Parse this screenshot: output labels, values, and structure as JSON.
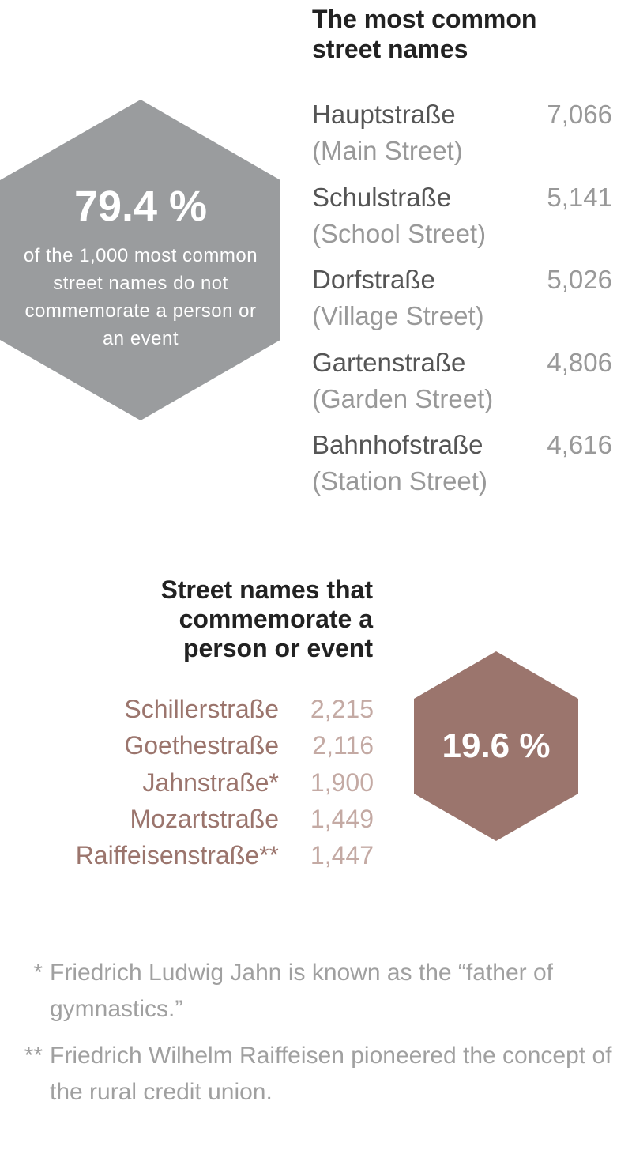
{
  "common": {
    "title": "The most common street names",
    "items": [
      {
        "name": "Hauptstraße",
        "translation": "(Main Street)",
        "count": "7,066"
      },
      {
        "name": "Schulstraße",
        "translation": "(School Street)",
        "count": "5,141"
      },
      {
        "name": "Dorfstraße",
        "translation": "(Village Street)",
        "count": "5,026"
      },
      {
        "name": "Gartenstraße",
        "translation": "(Garden Street)",
        "count": "4,806"
      },
      {
        "name": "Bahnhofstraße",
        "translation": "(Station Street)",
        "count": "4,616"
      }
    ]
  },
  "general_stat": {
    "value": "79.4 %",
    "caption": "of the 1,000 most common street names do not commemorate a person or an event"
  },
  "commemorative": {
    "title": "Street names that commemorate a person or event",
    "items": [
      {
        "name": "Schillerstraße",
        "count": "2,215"
      },
      {
        "name": "Goethestraße",
        "count": "2,116"
      },
      {
        "name": "Jahnstraße*",
        "count": "1,900"
      },
      {
        "name": "Mozartstraße",
        "count": "1,449"
      },
      {
        "name": "Raiffeisenstraße**",
        "count": "1,447"
      }
    ]
  },
  "commemorative_stat": {
    "value": "19.6 %"
  },
  "footnotes": [
    {
      "marker": "*",
      "text": "Friedrich Ludwig Jahn is known as the “father of gymnastics.”"
    },
    {
      "marker": "**",
      "text": "Friedrich Wilhelm Raiffeisen pioneered the concept of the rural credit union."
    }
  ]
}
